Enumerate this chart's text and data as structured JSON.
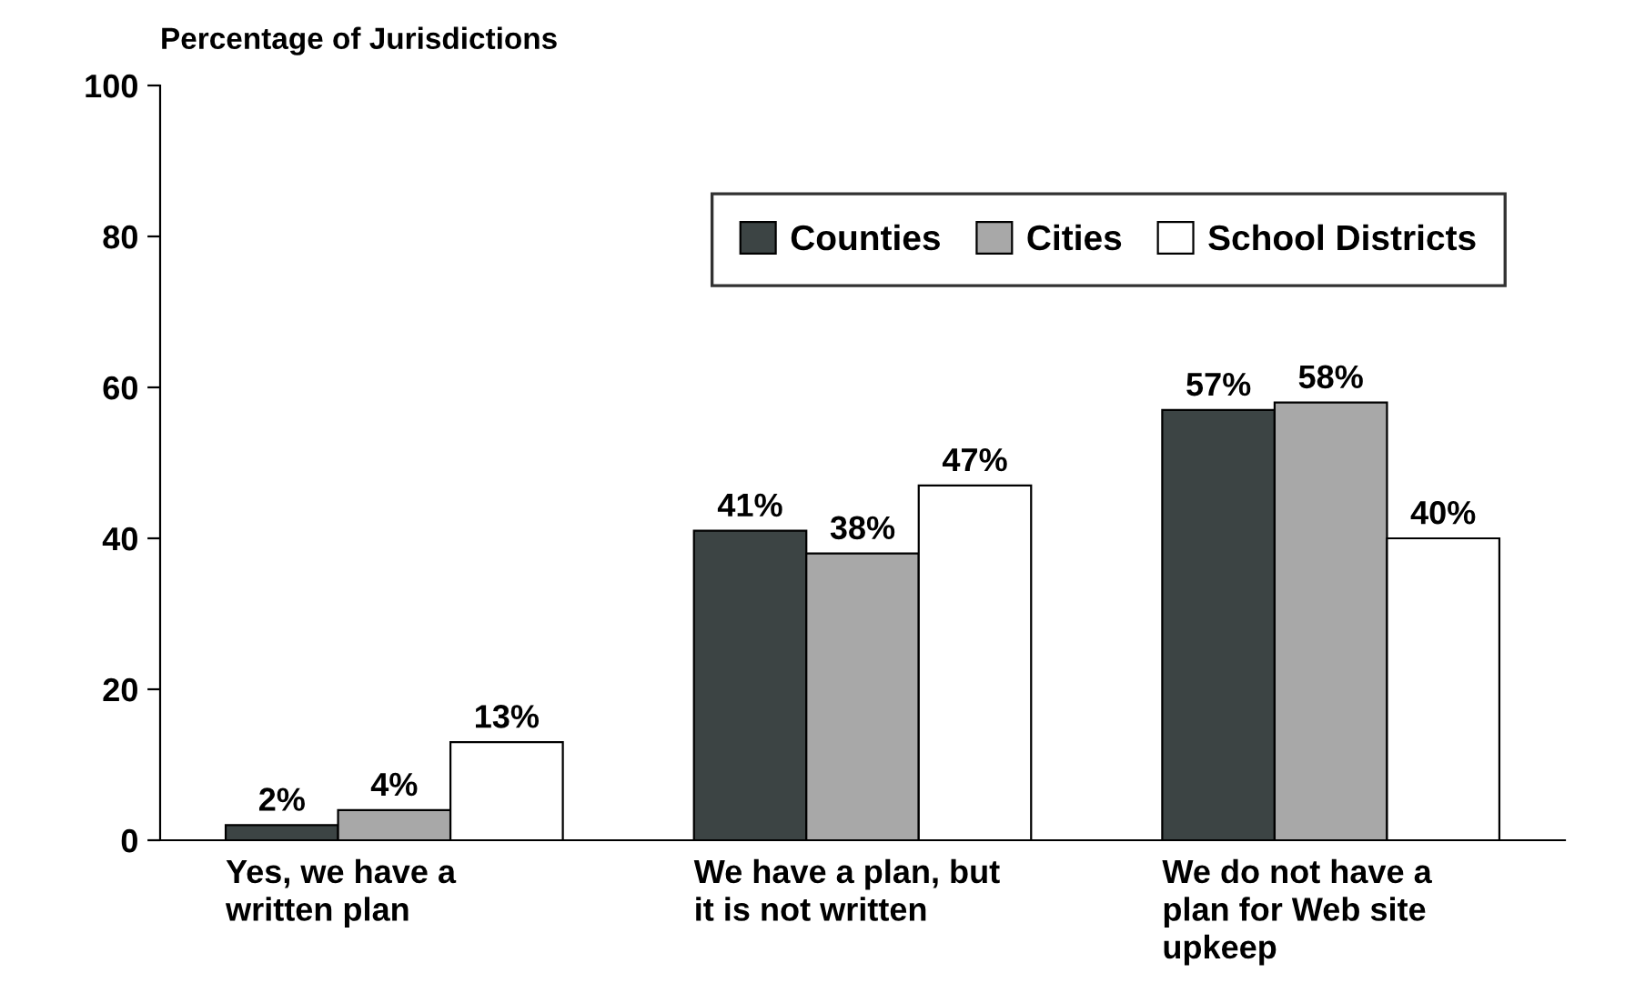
{
  "chart_data": {
    "type": "bar",
    "ylabel": "Percentage of Jurisdictions",
    "categories": [
      "Yes, we have a\nwritten plan",
      "We have a plan, but\nit is not written",
      "We do not have a\nplan for Web site\nupkeep"
    ],
    "series": [
      {
        "name": "Counties",
        "color": "#3c4444",
        "values": [
          2,
          41,
          57
        ],
        "value_labels": [
          "2%",
          "41%",
          "57%"
        ]
      },
      {
        "name": "Cities",
        "color": "#a8a8a8",
        "values": [
          4,
          38,
          58
        ],
        "value_labels": [
          "4%",
          "38%",
          "58%"
        ]
      },
      {
        "name": "School Districts",
        "color": "#ffffff",
        "values": [
          13,
          47,
          40
        ],
        "value_labels": [
          "13%",
          "47%",
          "40%"
        ]
      }
    ],
    "ylim": [
      0,
      100
    ],
    "yticks": [
      0,
      20,
      40,
      60,
      80,
      100
    ],
    "grid": false,
    "legend": "top right"
  }
}
